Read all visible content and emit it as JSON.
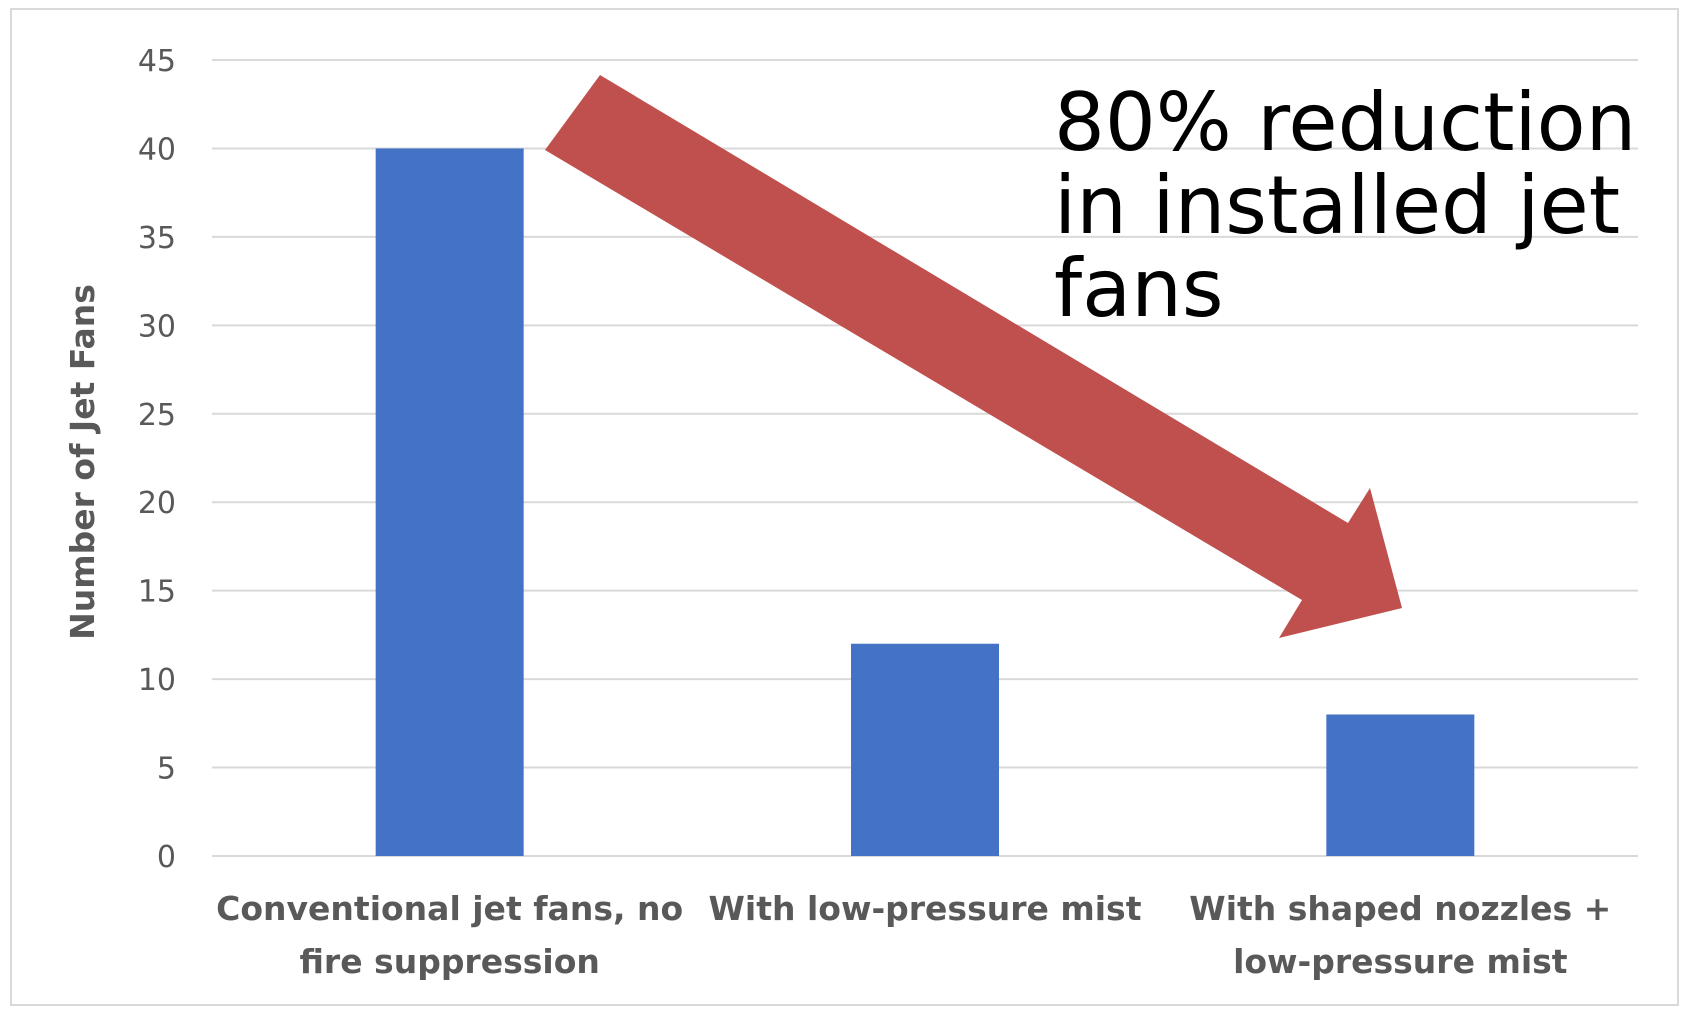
{
  "chart_data": {
    "type": "bar",
    "title": "",
    "xlabel": "",
    "ylabel": "Number of Jet Fans",
    "categories": [
      [
        "Conventional jet fans, no",
        "fire suppression"
      ],
      [
        "With low-pressure mist"
      ],
      [
        "With shaped nozzles +",
        "low-pressure mist"
      ]
    ],
    "values": [
      40,
      12,
      8
    ],
    "ylim": [
      0,
      45
    ],
    "yticks": [
      0,
      5,
      10,
      15,
      20,
      25,
      30,
      35,
      40,
      45
    ],
    "grid": true,
    "legend": "none",
    "annotation": {
      "lines": [
        "80% reduction",
        "in installed jet",
        "fans"
      ],
      "arrow": "from-first-bar-to-last-bar"
    }
  },
  "colors": {
    "bar": "#4472c4",
    "arrow": "#c0504d",
    "grid": "#d9d9d9",
    "axis_text": "#595959",
    "annotation_text": "#000000"
  }
}
